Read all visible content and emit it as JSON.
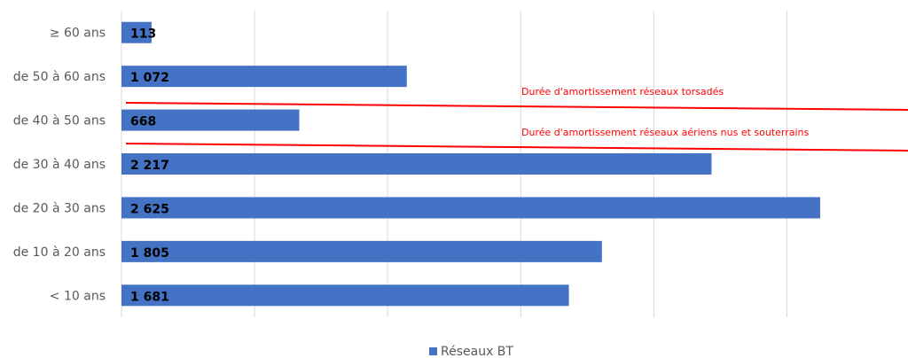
{
  "chart_data": {
    "type": "barh",
    "categories": [
      "≥ 60 ans",
      "de 50 à 60 ans",
      "de 40 à 50 ans",
      "de 30 à 40 ans",
      "de 20 à 30 ans",
      "de 10 à 20 ans",
      "< 10 ans"
    ],
    "series": [
      {
        "name": "Réseaux BT",
        "color": "#4472c4",
        "values": [
          113,
          1072,
          668,
          2217,
          2625,
          1805,
          1681
        ],
        "value_labels": [
          "113",
          "1 072",
          "668",
          "2 217",
          "2 625",
          "1 805",
          "1 681"
        ]
      }
    ],
    "xlim": [
      0,
      2955
    ],
    "xticks": [
      0,
      500,
      1000,
      1500,
      2000,
      2500
    ],
    "grid": true,
    "legend": "bottom",
    "annotations": [
      {
        "text": "Durée d'amortissement réseaux torsadés",
        "color": "#ff0000"
      },
      {
        "text": "Durée d'amortissement réseaux aériens nus et souterrains",
        "color": "#ff0000"
      }
    ]
  }
}
